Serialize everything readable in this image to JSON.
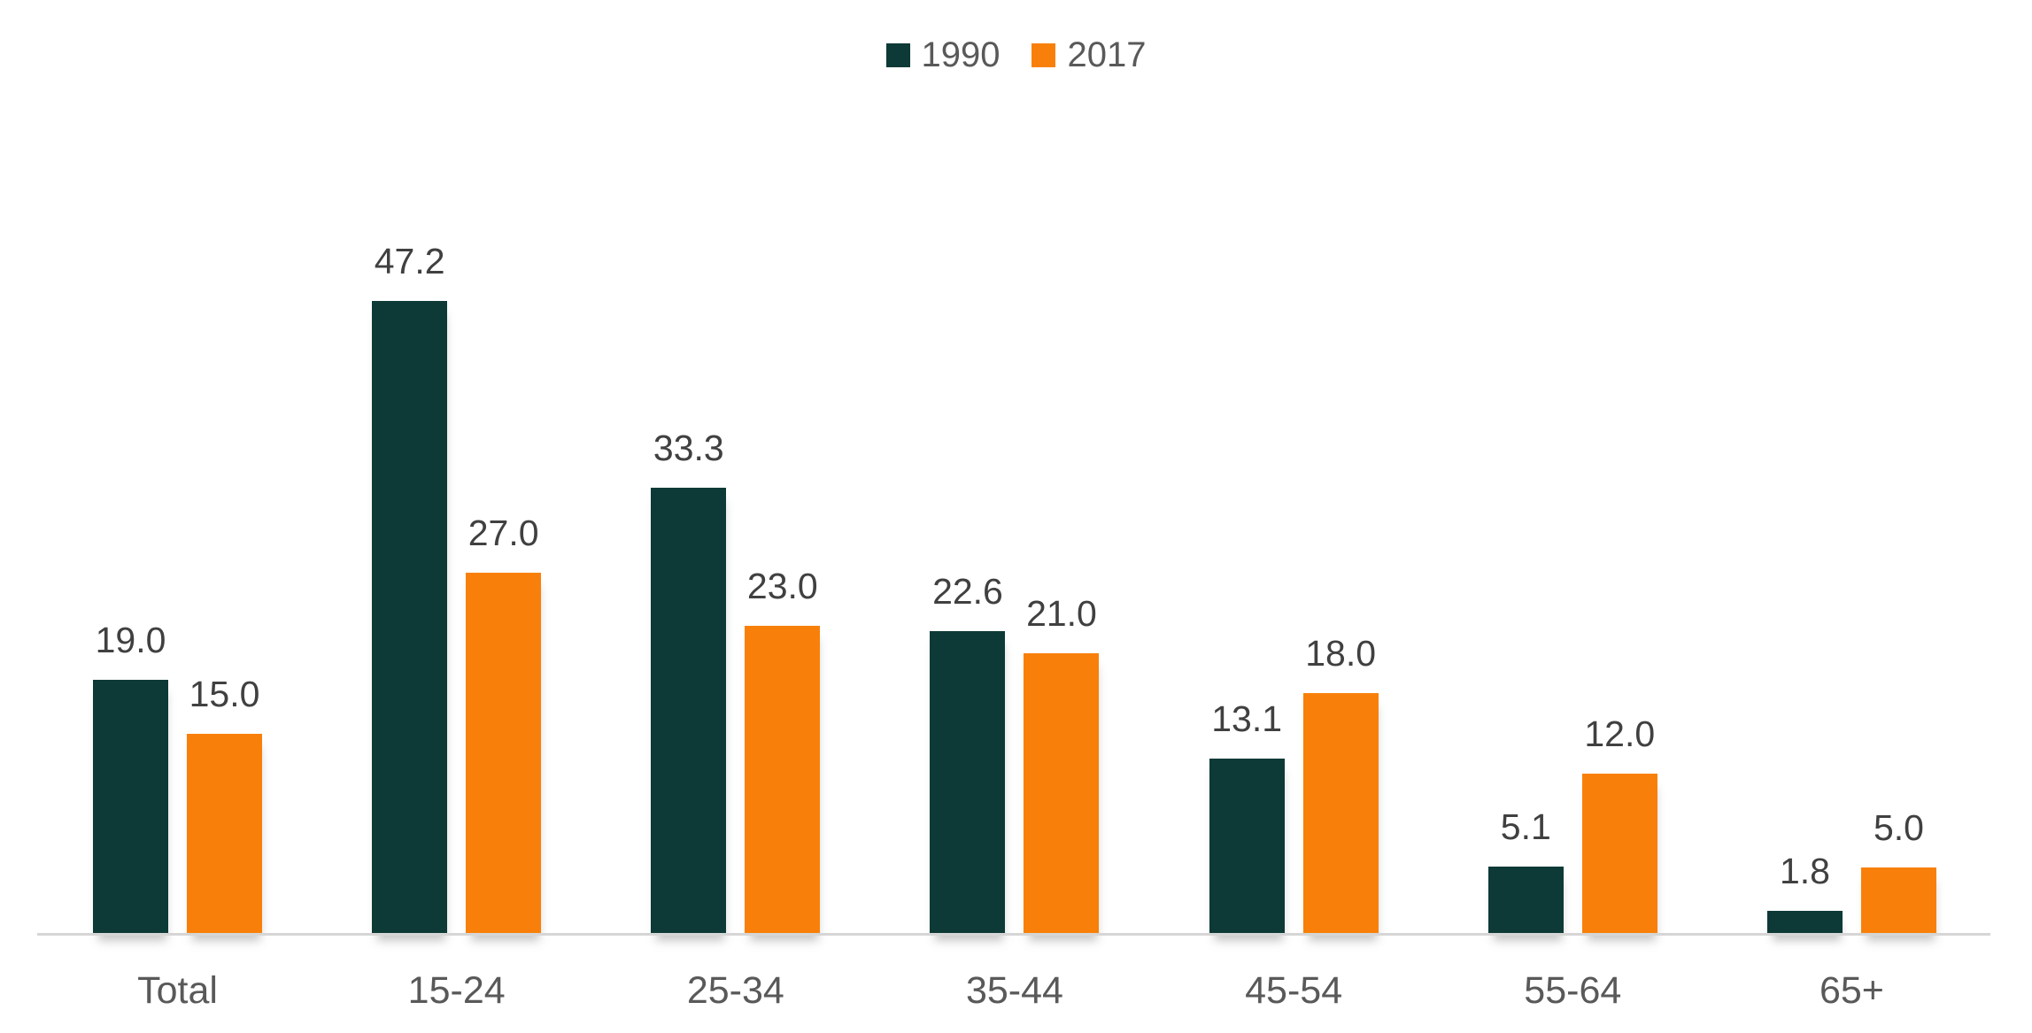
{
  "chart_data": {
    "type": "bar",
    "title": "",
    "xlabel": "",
    "ylabel": "",
    "categories": [
      "Total",
      "15-24",
      "25-34",
      "35-44",
      "45-54",
      "55-64",
      "65+"
    ],
    "series": [
      {
        "name": "1990",
        "color": "#0d3a36",
        "values": [
          19.0,
          47.2,
          33.3,
          22.6,
          13.1,
          5.1,
          1.8
        ],
        "data_labels": [
          "19.0",
          "47.2",
          "33.3",
          "22.6",
          "13.1",
          "5.1",
          "1.8"
        ]
      },
      {
        "name": "2017",
        "color": "#f8800a",
        "values": [
          15.0,
          27.0,
          23.0,
          21.0,
          18.0,
          12.0,
          5.0
        ],
        "data_labels": [
          "15.0",
          "27.0",
          "23.0",
          "21.0",
          "18.0",
          "12.0",
          "5.0"
        ]
      }
    ],
    "ylim": [
      0,
      50
    ],
    "grid": false,
    "y_axis_visible": false,
    "data_labels_shown": true,
    "legend_position": "top-center",
    "colors": {
      "background": "#ffffff",
      "baseline": "#d6d6d6",
      "data_label_text": "#404040",
      "category_label_text": "#595959",
      "legend_text": "#595959"
    }
  }
}
